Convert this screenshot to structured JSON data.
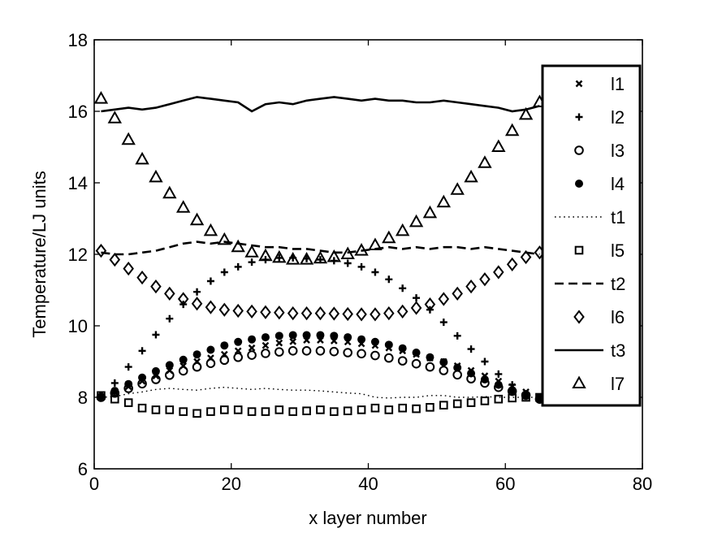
{
  "chart_data": {
    "type": "line",
    "title": "",
    "xlabel": "x layer number",
    "ylabel": "Temperature/LJ units",
    "xlim": [
      0,
      80
    ],
    "ylim": [
      6,
      18
    ],
    "xticks": [
      0,
      20,
      40,
      60,
      80
    ],
    "yticks": [
      6,
      8,
      10,
      12,
      14,
      16,
      18
    ],
    "xtick_labels": [
      "0",
      "20",
      "40",
      "60",
      "80"
    ],
    "ytick_labels": [
      "6",
      "8",
      "10",
      "12",
      "14",
      "16",
      "18"
    ],
    "grid": false,
    "legend_position": "right",
    "x": [
      1,
      3,
      5,
      7,
      9,
      11,
      13,
      15,
      17,
      19,
      21,
      23,
      25,
      27,
      29,
      31,
      33,
      35,
      37,
      39,
      41,
      43,
      45,
      47,
      49,
      51,
      53,
      55,
      57,
      59,
      61,
      63,
      65
    ],
    "series": [
      {
        "name": "l1",
        "marker": "x",
        "values": [
          8.0,
          8.15,
          8.3,
          8.45,
          8.6,
          8.75,
          8.88,
          9.0,
          9.1,
          9.2,
          9.3,
          9.38,
          9.45,
          9.52,
          9.56,
          9.6,
          9.6,
          9.58,
          9.55,
          9.5,
          9.45,
          9.38,
          9.3,
          9.2,
          9.1,
          9.0,
          8.88,
          8.75,
          8.6,
          8.45,
          8.3,
          8.15,
          8.0
        ]
      },
      {
        "name": "l2",
        "marker": "+",
        "values": [
          8.0,
          8.4,
          8.85,
          9.3,
          9.75,
          10.2,
          10.6,
          10.95,
          11.25,
          11.5,
          11.65,
          11.78,
          11.85,
          11.9,
          11.9,
          11.88,
          11.85,
          11.82,
          11.75,
          11.65,
          11.5,
          11.3,
          11.05,
          10.78,
          10.45,
          10.1,
          9.72,
          9.35,
          9.0,
          8.65,
          8.35,
          8.1,
          7.95
        ]
      },
      {
        "name": "l3",
        "marker": "o",
        "values": [
          8.0,
          8.12,
          8.25,
          8.38,
          8.5,
          8.62,
          8.74,
          8.85,
          8.95,
          9.04,
          9.12,
          9.18,
          9.23,
          9.27,
          9.3,
          9.3,
          9.3,
          9.28,
          9.25,
          9.22,
          9.17,
          9.1,
          9.02,
          8.94,
          8.85,
          8.75,
          8.63,
          8.52,
          8.4,
          8.28,
          8.17,
          8.06,
          7.95
        ]
      },
      {
        "name": "l4",
        "marker": "dot",
        "values": [
          8.0,
          8.18,
          8.37,
          8.55,
          8.73,
          8.9,
          9.05,
          9.2,
          9.33,
          9.45,
          9.55,
          9.62,
          9.68,
          9.72,
          9.74,
          9.74,
          9.74,
          9.72,
          9.68,
          9.62,
          9.55,
          9.47,
          9.37,
          9.25,
          9.12,
          8.98,
          8.83,
          8.67,
          8.5,
          8.35,
          8.2,
          8.05,
          7.95
        ]
      },
      {
        "name": "t1",
        "line": "dotted",
        "values": [
          8.0,
          8.02,
          8.1,
          8.15,
          8.22,
          8.25,
          8.22,
          8.2,
          8.25,
          8.28,
          8.25,
          8.22,
          8.25,
          8.22,
          8.2,
          8.2,
          8.18,
          8.15,
          8.12,
          8.1,
          8.0,
          7.98,
          8.0,
          8.0,
          8.05,
          8.05,
          8.0,
          8.0,
          8.02,
          8.0,
          8.0,
          8.0,
          8.0
        ]
      },
      {
        "name": "l5",
        "marker": "square",
        "values": [
          8.05,
          7.95,
          7.85,
          7.7,
          7.65,
          7.65,
          7.6,
          7.55,
          7.6,
          7.65,
          7.65,
          7.6,
          7.6,
          7.65,
          7.6,
          7.62,
          7.65,
          7.6,
          7.62,
          7.65,
          7.7,
          7.65,
          7.7,
          7.68,
          7.72,
          7.78,
          7.82,
          7.85,
          7.9,
          7.95,
          7.98,
          8.0,
          8.0
        ]
      },
      {
        "name": "t2",
        "line": "dashed",
        "values": [
          12.05,
          12.0,
          12.0,
          12.05,
          12.1,
          12.2,
          12.3,
          12.35,
          12.3,
          12.35,
          12.3,
          12.25,
          12.2,
          12.2,
          12.15,
          12.15,
          12.1,
          12.05,
          12.05,
          12.1,
          12.15,
          12.2,
          12.15,
          12.2,
          12.15,
          12.2,
          12.2,
          12.15,
          12.2,
          12.15,
          12.1,
          12.05,
          12.0
        ]
      },
      {
        "name": "l6",
        "marker": "diamond",
        "values": [
          12.1,
          11.85,
          11.6,
          11.35,
          11.1,
          10.9,
          10.75,
          10.62,
          10.52,
          10.45,
          10.42,
          10.4,
          10.38,
          10.37,
          10.35,
          10.35,
          10.35,
          10.34,
          10.33,
          10.32,
          10.32,
          10.35,
          10.4,
          10.5,
          10.6,
          10.75,
          10.9,
          11.1,
          11.3,
          11.5,
          11.72,
          11.92,
          12.05
        ]
      },
      {
        "name": "t3",
        "line": "solid",
        "values": [
          16.0,
          16.05,
          16.1,
          16.05,
          16.1,
          16.2,
          16.3,
          16.4,
          16.35,
          16.3,
          16.25,
          16.0,
          16.2,
          16.25,
          16.2,
          16.3,
          16.35,
          16.4,
          16.35,
          16.3,
          16.35,
          16.3,
          16.3,
          16.25,
          16.25,
          16.3,
          16.25,
          16.2,
          16.15,
          16.1,
          16.0,
          16.05,
          16.15
        ]
      },
      {
        "name": "l7",
        "marker": "triangle",
        "values": [
          16.35,
          15.8,
          15.2,
          14.65,
          14.15,
          13.7,
          13.3,
          12.95,
          12.65,
          12.4,
          12.2,
          12.05,
          11.95,
          11.9,
          11.85,
          11.85,
          11.88,
          11.92,
          12.0,
          12.1,
          12.25,
          12.45,
          12.65,
          12.9,
          13.15,
          13.45,
          13.8,
          14.15,
          14.55,
          15.0,
          15.45,
          15.9,
          16.25
        ]
      }
    ]
  }
}
